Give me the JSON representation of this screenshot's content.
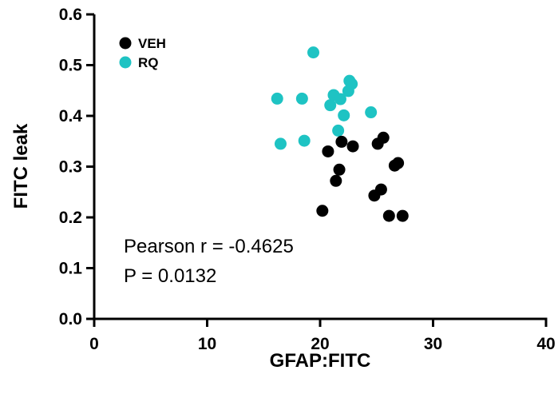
{
  "chart_data": {
    "type": "scatter",
    "xlabel": "GFAP:FITC",
    "ylabel": "FITC leak",
    "xlim": [
      0,
      40
    ],
    "ylim": [
      0,
      0.6
    ],
    "x_ticks": [
      0,
      10,
      20,
      30,
      40
    ],
    "y_ticks": [
      0.0,
      0.1,
      0.2,
      0.3,
      0.4,
      0.5,
      0.6
    ],
    "x_tick_labels": [
      "0",
      "10",
      "20",
      "30",
      "40"
    ],
    "y_tick_labels": [
      "0.0",
      "0.1",
      "0.2",
      "0.3",
      "0.4",
      "0.5",
      "0.6"
    ],
    "grid": false,
    "legend_position": "top-left",
    "series": [
      {
        "name": "VEH",
        "color": "#000000",
        "points": [
          [
            20.2,
            0.213
          ],
          [
            20.7,
            0.33
          ],
          [
            21.4,
            0.272
          ],
          [
            21.7,
            0.294
          ],
          [
            21.9,
            0.349
          ],
          [
            22.9,
            0.34
          ],
          [
            24.8,
            0.243
          ],
          [
            25.1,
            0.345
          ],
          [
            25.4,
            0.255
          ],
          [
            25.6,
            0.357
          ],
          [
            26.1,
            0.203
          ],
          [
            26.6,
            0.302
          ],
          [
            26.9,
            0.307
          ],
          [
            27.3,
            0.203
          ]
        ]
      },
      {
        "name": "RQ",
        "color": "#1ec3c3",
        "points": [
          [
            16.2,
            0.434
          ],
          [
            16.5,
            0.345
          ],
          [
            18.4,
            0.434
          ],
          [
            18.6,
            0.351
          ],
          [
            19.4,
            0.525
          ],
          [
            20.9,
            0.421
          ],
          [
            21.2,
            0.441
          ],
          [
            21.6,
            0.371
          ],
          [
            21.8,
            0.433
          ],
          [
            22.1,
            0.401
          ],
          [
            22.5,
            0.449
          ],
          [
            22.6,
            0.469
          ],
          [
            22.8,
            0.463
          ],
          [
            24.5,
            0.407
          ]
        ]
      }
    ],
    "annotations": [
      "Pearson r = -0.4625",
      "P = 0.0132"
    ]
  }
}
